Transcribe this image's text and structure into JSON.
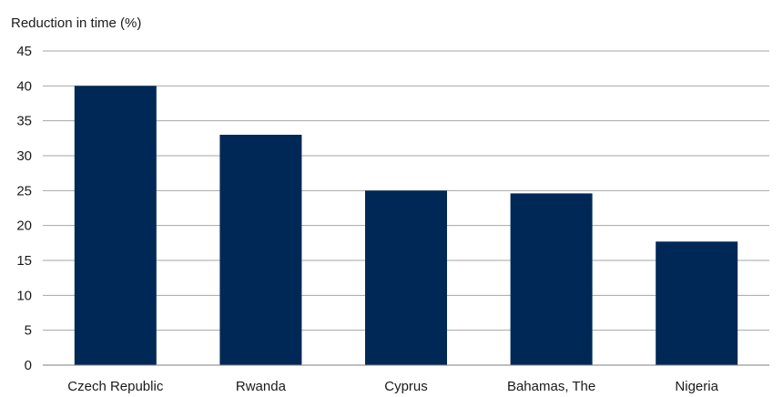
{
  "chart_data": {
    "type": "bar",
    "title": "",
    "xlabel": "",
    "ylabel": "Reduction in time (%)",
    "categories": [
      "Czech Republic",
      "Rwanda",
      "Cyprus",
      "Bahamas, The",
      "Nigeria"
    ],
    "values": [
      40,
      33,
      25,
      24.6,
      17.7
    ],
    "ylim": [
      0,
      45
    ],
    "yticks": [
      "0",
      "5",
      "10",
      "15",
      "20",
      "25",
      "30",
      "35",
      "40",
      "45"
    ],
    "grid": true,
    "legend": "none",
    "bar_color": "#002856"
  }
}
